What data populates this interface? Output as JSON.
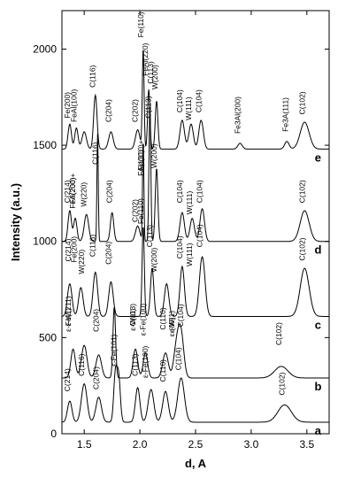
{
  "chart_data": {
    "type": "line",
    "xlabel": "d, A",
    "ylabel": "Intensity (a.u.)",
    "xlim": [
      1.3,
      3.7
    ],
    "ylim": [
      0,
      2200
    ],
    "xticks": [
      1.5,
      2.0,
      2.5,
      3.0,
      3.5
    ],
    "xtick_labels": [
      "1.5",
      "2.0",
      "2.5",
      "3.0",
      "3.5"
    ],
    "yticks": [
      0,
      500,
      1000,
      1500,
      2000
    ],
    "ytick_labels": [
      "0",
      "500",
      "1000",
      "1500",
      "2000"
    ],
    "series": [
      {
        "name": "a",
        "baseline": 60,
        "label_x": 3.6,
        "peaks": [
          [
            1.37,
            110,
            0.02
          ],
          [
            1.5,
            200,
            0.025
          ],
          [
            1.63,
            130,
            0.025
          ],
          [
            1.78,
            250,
            0.015
          ],
          [
            1.81,
            230,
            0.015
          ],
          [
            1.98,
            180,
            0.02
          ],
          [
            2.1,
            170,
            0.025
          ],
          [
            2.23,
            160,
            0.025
          ],
          [
            2.37,
            230,
            0.03
          ],
          [
            3.3,
            90,
            0.06
          ]
        ],
        "annotations": [
          {
            "text": "C(214)",
            "x": 1.37,
            "y": 220
          },
          {
            "text": "C(116)",
            "x": 1.5,
            "y": 300
          },
          {
            "text": "C(204)",
            "x": 1.63,
            "y": 230
          },
          {
            "text": "ε-Fe(101)",
            "x": 1.79,
            "y": 350
          },
          {
            "text": "C(113)",
            "x": 1.98,
            "y": 300
          },
          {
            "text": "ε-Fe(100)",
            "x": 2.07,
            "y": 290
          },
          {
            "text": "C(110)",
            "x": 2.23,
            "y": 270
          },
          {
            "text": "C(104)",
            "x": 2.37,
            "y": 330
          },
          {
            "text": "C(102)",
            "x": 3.3,
            "y": 200
          }
        ]
      },
      {
        "name": "b",
        "baseline": 290,
        "label_x": 3.6,
        "peaks": [
          [
            1.4,
            150,
            0.02
          ],
          [
            1.5,
            170,
            0.025
          ],
          [
            1.63,
            120,
            0.025
          ],
          [
            1.77,
            370,
            0.012
          ],
          [
            1.96,
            150,
            0.02
          ],
          [
            2.05,
            130,
            0.02
          ],
          [
            2.23,
            130,
            0.025
          ],
          [
            2.33,
            160,
            0.025
          ],
          [
            2.37,
            220,
            0.025
          ],
          [
            3.27,
            60,
            0.06
          ]
        ],
        "annotations": [
          {
            "text": "ε-W(211)",
            "x": 1.38,
            "y": 560
          },
          {
            "text": "ε-Fe(1)",
            "x": 1.38,
            "y": 530
          },
          {
            "text": "C(204)",
            "x": 1.63,
            "y": 530
          },
          {
            "text": "C(113)",
            "x": 1.96,
            "y": 560
          },
          {
            "text": "ε-W(0)",
            "x": 1.96,
            "y": 535
          },
          {
            "text": "ε-Fe(100)",
            "x": 2.05,
            "y": 510
          },
          {
            "text": "C(110)",
            "x": 2.23,
            "y": 540
          },
          {
            "text": "ε-W(1)",
            "x": 2.31,
            "y": 525
          },
          {
            "text": "ε-(00)",
            "x": 2.31,
            "y": 505
          },
          {
            "text": "C(104)",
            "x": 2.39,
            "y": 555
          },
          {
            "text": "C(102)",
            "x": 3.27,
            "y": 460
          }
        ]
      },
      {
        "name": "c",
        "baseline": 610,
        "label_x": 3.6,
        "peaks": [
          [
            1.37,
            170,
            0.02
          ],
          [
            1.47,
            150,
            0.02
          ],
          [
            1.6,
            230,
            0.02
          ],
          [
            1.74,
            180,
            0.02
          ],
          [
            2.03,
            470,
            0.01
          ],
          [
            2.11,
            250,
            0.015
          ],
          [
            2.24,
            170,
            0.02
          ],
          [
            2.38,
            260,
            0.02
          ],
          [
            2.56,
            310,
            0.025
          ],
          [
            3.48,
            250,
            0.04
          ]
        ],
        "annotations": [
          {
            "text": "C(214)",
            "x": 1.38,
            "y": 895
          },
          {
            "text": "Fe(200)",
            "x": 1.43,
            "y": 890
          },
          {
            "text": "W(220)",
            "x": 1.5,
            "y": 830
          },
          {
            "text": "C(116)",
            "x": 1.6,
            "y": 920
          },
          {
            "text": "C(204)",
            "x": 1.74,
            "y": 880
          },
          {
            "text": "Fe(110)",
            "x": 2.03,
            "y": 1090
          },
          {
            "text": "C(113)",
            "x": 2.11,
            "y": 970
          },
          {
            "text": "W(200)",
            "x": 2.15,
            "y": 840
          },
          {
            "text": "C(104)",
            "x": 2.38,
            "y": 910
          },
          {
            "text": "W(111)",
            "x": 2.47,
            "y": 870
          },
          {
            "text": "C(104)",
            "x": 2.56,
            "y": 970
          },
          {
            "text": "C(102)",
            "x": 3.48,
            "y": 900
          }
        ]
      },
      {
        "name": "d",
        "baseline": 1000,
        "label_x": 3.6,
        "peaks": [
          [
            1.37,
            160,
            0.015
          ],
          [
            1.42,
            120,
            0.015
          ],
          [
            1.52,
            140,
            0.02
          ],
          [
            1.62,
            560,
            0.006
          ],
          [
            1.75,
            150,
            0.015
          ],
          [
            1.98,
            80,
            0.02
          ],
          [
            2.03,
            530,
            0.006
          ],
          [
            2.09,
            720,
            0.008
          ],
          [
            2.15,
            380,
            0.012
          ],
          [
            2.38,
            150,
            0.02
          ],
          [
            2.47,
            120,
            0.02
          ],
          [
            2.56,
            170,
            0.02
          ],
          [
            3.48,
            160,
            0.04
          ]
        ],
        "annotations": [
          {
            "text": "C(214)",
            "x": 1.37,
            "y": 1200
          },
          {
            "text": "Fe(200)+",
            "x": 1.42,
            "y": 1195
          },
          {
            "text": "FeA(200)",
            "x": 1.42,
            "y": 1170
          },
          {
            "text": "W(220)",
            "x": 1.52,
            "y": 1180
          },
          {
            "text": "C(116)",
            "x": 1.62,
            "y": 1400
          },
          {
            "text": "C(204)",
            "x": 1.75,
            "y": 1200
          },
          {
            "text": "C(202)",
            "x": 1.98,
            "y": 1100
          },
          {
            "text": "Fe(110)+",
            "x": 2.03,
            "y": 1370
          },
          {
            "text": "FA(110)",
            "x": 2.03,
            "y": 1340
          },
          {
            "text": "W(200)",
            "x": 2.15,
            "y": 1380
          },
          {
            "text": "C(104)",
            "x": 2.38,
            "y": 1200
          },
          {
            "text": "W(111)",
            "x": 2.47,
            "y": 1140
          },
          {
            "text": "C(104)",
            "x": 2.56,
            "y": 1200
          },
          {
            "text": "C(102)",
            "x": 3.48,
            "y": 1200
          }
        ]
      },
      {
        "name": "e",
        "baseline": 1480,
        "label_x": 3.6,
        "peaks": [
          [
            1.37,
            130,
            0.015
          ],
          [
            1.43,
            110,
            0.015
          ],
          [
            1.5,
            90,
            0.02
          ],
          [
            1.6,
            280,
            0.015
          ],
          [
            1.74,
            90,
            0.02
          ],
          [
            1.98,
            100,
            0.02
          ],
          [
            2.03,
            520,
            0.008
          ],
          [
            2.08,
            310,
            0.01
          ],
          [
            2.15,
            250,
            0.012
          ],
          [
            2.38,
            150,
            0.02
          ],
          [
            2.46,
            130,
            0.02
          ],
          [
            2.55,
            150,
            0.02
          ],
          [
            2.9,
            30,
            0.02
          ],
          [
            3.32,
            40,
            0.02
          ],
          [
            3.48,
            140,
            0.04
          ]
        ],
        "annotations": [
          {
            "text": "Fe(200)",
            "x": 1.37,
            "y": 1640
          },
          {
            "text": "FeAl(100)",
            "x": 1.43,
            "y": 1620
          },
          {
            "text": "C(116)",
            "x": 1.6,
            "y": 1800
          },
          {
            "text": "C(204)",
            "x": 1.74,
            "y": 1620
          },
          {
            "text": "C(202)",
            "x": 1.98,
            "y": 1620
          },
          {
            "text": "Fe(110)",
            "x": 2.03,
            "y": 2060
          },
          {
            "text": "FeAl(220)",
            "x": 2.07,
            "y": 1860
          },
          {
            "text": "C(113)",
            "x": 2.12,
            "y": 1820
          },
          {
            "text": "W(200)",
            "x": 2.16,
            "y": 1790
          },
          {
            "text": "C(113)",
            "x": 2.1,
            "y": 1640
          },
          {
            "text": "C(104)",
            "x": 2.38,
            "y": 1670
          },
          {
            "text": "W(111)",
            "x": 2.46,
            "y": 1630
          },
          {
            "text": "C(104)",
            "x": 2.55,
            "y": 1670
          },
          {
            "text": "Fe3Al(200)",
            "x": 2.9,
            "y": 1560
          },
          {
            "text": "Fe3A(111)",
            "x": 3.33,
            "y": 1570
          },
          {
            "text": "C(102)",
            "x": 3.48,
            "y": 1660
          }
        ]
      }
    ]
  }
}
